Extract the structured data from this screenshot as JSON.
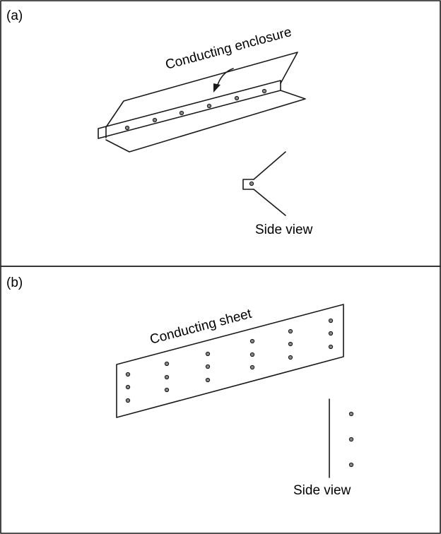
{
  "panel_a": {
    "label": "(a)",
    "title": "Conducting enclosure",
    "side_view_caption": "Side view"
  },
  "panel_b": {
    "label": "(b)",
    "title": "Conducting sheet",
    "side_view_caption": "Side view"
  },
  "colors": {
    "stroke": "#1a1a1a",
    "dot_fill": "#888888",
    "background": "#ffffff"
  }
}
